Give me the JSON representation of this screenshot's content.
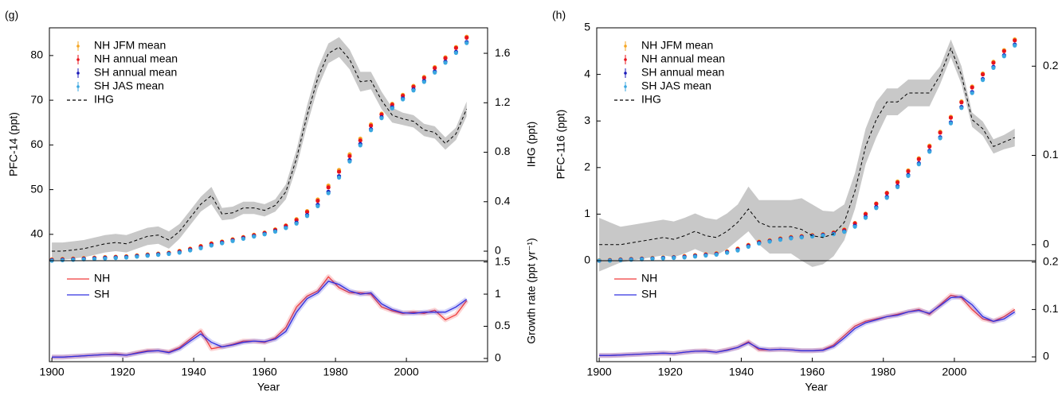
{
  "chart_data": [
    {
      "type": "scatter",
      "title": "(g)",
      "ylabel": "PFC-14 (ppt)",
      "ylabel_color": "#e8141c",
      "y2label": "IHG (ppt)",
      "legend": "upper left",
      "x": [
        1900,
        1903,
        1906,
        1909,
        1912,
        1915,
        1918,
        1921,
        1924,
        1927,
        1930,
        1933,
        1936,
        1939,
        1942,
        1945,
        1948,
        1951,
        1954,
        1957,
        1960,
        1963,
        1966,
        1969,
        1972,
        1975,
        1978,
        1981,
        1984,
        1987,
        1990,
        1993,
        1996,
        1999,
        2002,
        2005,
        2008,
        2011,
        2014,
        2017
      ],
      "xlim": [
        1899.3,
        2022.9
      ],
      "ylim": [
        34.1,
        86.2
      ],
      "yticks": [
        40,
        50,
        60,
        70,
        80
      ],
      "y2lim": [
        -0.077,
        1.806
      ],
      "y2ticks": [
        0,
        0.4,
        0.8,
        1.2,
        1.6
      ],
      "series": [
        {
          "name": "NH JFM mean",
          "color": "#f5a623",
          "marker": "o",
          "values": [
            34.4,
            34.5,
            34.6,
            34.7,
            34.8,
            34.9,
            35.0,
            35.1,
            35.3,
            35.5,
            35.7,
            35.9,
            36.3,
            36.8,
            37.4,
            38.0,
            38.4,
            38.9,
            39.4,
            39.9,
            40.4,
            41.1,
            42.0,
            43.4,
            45.2,
            47.8,
            50.9,
            54.4,
            57.9,
            61.4,
            64.6,
            67.0,
            69.2,
            71.2,
            73.2,
            75.2,
            77.4,
            79.6,
            81.9,
            84.2
          ]
        },
        {
          "name": "NH annual mean",
          "color": "#e8141c",
          "marker": "o",
          "values": [
            34.3,
            34.4,
            34.5,
            34.6,
            34.7,
            34.8,
            34.9,
            35.0,
            35.2,
            35.4,
            35.6,
            35.8,
            36.2,
            36.7,
            37.3,
            37.9,
            38.3,
            38.8,
            39.3,
            39.8,
            40.3,
            41.0,
            41.9,
            43.2,
            45.0,
            47.5,
            50.5,
            54.0,
            57.5,
            61.0,
            64.3,
            66.8,
            69.0,
            71.0,
            73.0,
            75.0,
            77.2,
            79.4,
            81.7,
            84.0
          ]
        },
        {
          "name": "SH annual mean",
          "color": "#1a1ab8",
          "marker": "o",
          "values": [
            34.2,
            34.3,
            34.4,
            34.5,
            34.6,
            34.7,
            34.8,
            34.9,
            35.1,
            35.3,
            35.5,
            35.7,
            36.0,
            36.5,
            37.0,
            37.6,
            38.1,
            38.6,
            39.1,
            39.6,
            40.1,
            40.7,
            41.5,
            42.6,
            44.3,
            46.6,
            49.5,
            53.0,
            56.6,
            60.2,
            63.5,
            66.2,
            68.4,
            70.4,
            72.4,
            74.3,
            76.4,
            78.6,
            80.8,
            83.0
          ]
        },
        {
          "name": "SH JAS mean",
          "color": "#3aa7e0",
          "marker": "o",
          "values": [
            34.1,
            34.2,
            34.3,
            34.4,
            34.5,
            34.6,
            34.7,
            34.8,
            35.0,
            35.2,
            35.4,
            35.6,
            35.9,
            36.4,
            36.9,
            37.5,
            38.0,
            38.5,
            39.0,
            39.5,
            40.0,
            40.6,
            41.4,
            42.4,
            44.1,
            46.3,
            49.2,
            52.7,
            56.3,
            59.9,
            63.3,
            66.0,
            68.2,
            70.2,
            72.2,
            74.1,
            76.2,
            78.4,
            80.6,
            82.8
          ]
        },
        {
          "name": "IHG",
          "color": "#000000",
          "axis": "y2",
          "linestyle": "--",
          "band_color": "#c8c8c8",
          "values": [
            0.0,
            0.0,
            0.01,
            0.02,
            0.04,
            0.06,
            0.07,
            0.06,
            0.09,
            0.12,
            0.13,
            0.09,
            0.16,
            0.27,
            0.38,
            0.45,
            0.3,
            0.31,
            0.35,
            0.35,
            0.33,
            0.37,
            0.48,
            0.75,
            1.1,
            1.4,
            1.6,
            1.65,
            1.55,
            1.37,
            1.38,
            1.22,
            1.1,
            1.07,
            1.05,
            0.98,
            0.96,
            0.87,
            0.95,
            1.15
          ],
          "band": [
            0.07,
            0.07,
            0.07,
            0.07,
            0.07,
            0.07,
            0.07,
            0.07,
            0.07,
            0.07,
            0.07,
            0.07,
            0.06,
            0.06,
            0.06,
            0.07,
            0.05,
            0.05,
            0.05,
            0.05,
            0.05,
            0.05,
            0.06,
            0.07,
            0.08,
            0.08,
            0.08,
            0.08,
            0.08,
            0.08,
            0.07,
            0.07,
            0.06,
            0.05,
            0.05,
            0.05,
            0.05,
            0.05,
            0.05,
            0.06
          ]
        }
      ]
    },
    {
      "type": "line",
      "xlabel": "Year",
      "y2label": "Growth rate (ppt yr⁻¹)",
      "legend": "upper left",
      "x": [
        1900,
        1903,
        1906,
        1909,
        1912,
        1915,
        1918,
        1921,
        1924,
        1927,
        1930,
        1933,
        1936,
        1939,
        1942,
        1945,
        1948,
        1951,
        1954,
        1957,
        1960,
        1963,
        1966,
        1969,
        1972,
        1975,
        1978,
        1981,
        1984,
        1987,
        1990,
        1993,
        1996,
        1999,
        2002,
        2005,
        2008,
        2011,
        2014,
        2017
      ],
      "xlim": [
        1899.3,
        2022.9
      ],
      "xticks": [
        1900,
        1920,
        1940,
        1960,
        1980,
        2000
      ],
      "y2lim": [
        -0.05,
        1.52
      ],
      "y2ticks": [
        0,
        0.5,
        1,
        1.5
      ],
      "series": [
        {
          "name": "NH",
          "color": "#f03a3a",
          "axis": "y2",
          "values": [
            0.02,
            0.02,
            0.03,
            0.04,
            0.05,
            0.06,
            0.07,
            0.05,
            0.09,
            0.12,
            0.12,
            0.1,
            0.17,
            0.3,
            0.43,
            0.15,
            0.18,
            0.22,
            0.27,
            0.27,
            0.25,
            0.32,
            0.48,
            0.8,
            0.97,
            1.05,
            1.27,
            1.1,
            1.02,
            1.02,
            1.0,
            0.8,
            0.74,
            0.7,
            0.72,
            0.7,
            0.75,
            0.6,
            0.68,
            0.9
          ]
        },
        {
          "name": "SH",
          "color": "#3030e0",
          "axis": "y2",
          "values": [
            0.02,
            0.02,
            0.03,
            0.04,
            0.05,
            0.06,
            0.06,
            0.05,
            0.08,
            0.11,
            0.12,
            0.09,
            0.15,
            0.27,
            0.38,
            0.25,
            0.18,
            0.21,
            0.25,
            0.27,
            0.26,
            0.3,
            0.42,
            0.72,
            0.93,
            1.02,
            1.2,
            1.15,
            1.05,
            1.0,
            1.02,
            0.85,
            0.76,
            0.71,
            0.7,
            0.72,
            0.72,
            0.72,
            0.8,
            0.92
          ]
        }
      ]
    },
    {
      "type": "scatter",
      "title": "(h)",
      "ylabel": "PFC-116 (ppt)",
      "ylabel_color": "#e8141c",
      "y2label": "IHG (ppt)",
      "legend": "upper left",
      "x": [
        1900,
        1903,
        1906,
        1909,
        1912,
        1915,
        1918,
        1921,
        1924,
        1927,
        1930,
        1933,
        1936,
        1939,
        1942,
        1945,
        1948,
        1951,
        1954,
        1957,
        1960,
        1963,
        1966,
        1969,
        1972,
        1975,
        1978,
        1981,
        1984,
        1987,
        1990,
        1993,
        1996,
        1999,
        2002,
        2005,
        2008,
        2011,
        2014,
        2017
      ],
      "xlim": [
        1899.3,
        2022.9
      ],
      "ylim": [
        0,
        5
      ],
      "yticks": [
        0,
        1,
        2,
        3,
        4,
        5
      ],
      "y2lim": [
        -0.018,
        0.243
      ],
      "y2ticks": [
        0,
        0.1,
        0.2
      ],
      "series": [
        {
          "name": "NH JFM mean",
          "color": "#f5a623",
          "marker": "o",
          "values": [
            0.01,
            0.02,
            0.03,
            0.04,
            0.05,
            0.06,
            0.07,
            0.08,
            0.1,
            0.12,
            0.14,
            0.16,
            0.2,
            0.26,
            0.34,
            0.41,
            0.44,
            0.48,
            0.51,
            0.53,
            0.55,
            0.57,
            0.61,
            0.67,
            0.81,
            1.01,
            1.23,
            1.46,
            1.7,
            1.94,
            2.2,
            2.47,
            2.77,
            3.09,
            3.42,
            3.74,
            4.02,
            4.27,
            4.52,
            4.75
          ]
        },
        {
          "name": "NH annual mean",
          "color": "#e8141c",
          "marker": "o",
          "values": [
            0.0,
            0.01,
            0.02,
            0.03,
            0.04,
            0.05,
            0.06,
            0.07,
            0.09,
            0.11,
            0.13,
            0.15,
            0.19,
            0.25,
            0.33,
            0.4,
            0.43,
            0.47,
            0.5,
            0.52,
            0.54,
            0.56,
            0.6,
            0.66,
            0.8,
            1.0,
            1.22,
            1.45,
            1.68,
            1.92,
            2.18,
            2.45,
            2.75,
            3.07,
            3.4,
            3.72,
            4.0,
            4.25,
            4.5,
            4.73
          ]
        },
        {
          "name": "SH annual mean",
          "color": "#1a1ab8",
          "marker": "o",
          "values": [
            0.0,
            0.01,
            0.02,
            0.03,
            0.04,
            0.05,
            0.06,
            0.07,
            0.08,
            0.1,
            0.12,
            0.14,
            0.18,
            0.23,
            0.31,
            0.38,
            0.42,
            0.46,
            0.49,
            0.51,
            0.53,
            0.55,
            0.58,
            0.63,
            0.75,
            0.94,
            1.15,
            1.37,
            1.6,
            1.84,
            2.09,
            2.36,
            2.65,
            2.97,
            3.3,
            3.62,
            3.9,
            4.16,
            4.41,
            4.64
          ]
        },
        {
          "name": "SH JAS mean",
          "color": "#3aa7e0",
          "marker": "o",
          "values": [
            0.0,
            0.0,
            0.01,
            0.02,
            0.03,
            0.04,
            0.05,
            0.06,
            0.07,
            0.09,
            0.11,
            0.13,
            0.17,
            0.22,
            0.3,
            0.37,
            0.41,
            0.45,
            0.48,
            0.5,
            0.52,
            0.54,
            0.57,
            0.62,
            0.73,
            0.92,
            1.13,
            1.35,
            1.58,
            1.82,
            2.07,
            2.34,
            2.63,
            2.95,
            3.28,
            3.6,
            3.88,
            4.14,
            4.39,
            4.62
          ]
        },
        {
          "name": "IHG",
          "color": "#000000",
          "axis": "y2",
          "linestyle": "--",
          "band_color": "#c8c8c8",
          "values": [
            0.0,
            0.0,
            0.0,
            0.002,
            0.004,
            0.006,
            0.008,
            0.006,
            0.01,
            0.015,
            0.01,
            0.008,
            0.015,
            0.025,
            0.04,
            0.025,
            0.02,
            0.02,
            0.02,
            0.017,
            0.01,
            0.008,
            0.012,
            0.025,
            0.06,
            0.11,
            0.14,
            0.16,
            0.16,
            0.17,
            0.17,
            0.17,
            0.19,
            0.22,
            0.19,
            0.14,
            0.13,
            0.11,
            0.115,
            0.12
          ],
          "band": [
            0.03,
            0.025,
            0.02,
            0.02,
            0.02,
            0.02,
            0.02,
            0.02,
            0.02,
            0.02,
            0.02,
            0.02,
            0.02,
            0.02,
            0.025,
            0.025,
            0.03,
            0.03,
            0.03,
            0.035,
            0.035,
            0.03,
            0.025,
            0.02,
            0.02,
            0.02,
            0.02,
            0.015,
            0.015,
            0.015,
            0.015,
            0.015,
            0.01,
            0.01,
            0.01,
            0.008,
            0.008,
            0.008,
            0.008,
            0.01
          ]
        }
      ]
    },
    {
      "type": "line",
      "xlabel": "Year",
      "y2label": "Growth rate (ppt yr⁻¹)",
      "legend": "upper left",
      "x": [
        1900,
        1903,
        1906,
        1909,
        1912,
        1915,
        1918,
        1921,
        1924,
        1927,
        1930,
        1933,
        1936,
        1939,
        1942,
        1945,
        1948,
        1951,
        1954,
        1957,
        1960,
        1963,
        1966,
        1969,
        1972,
        1975,
        1978,
        1981,
        1984,
        1987,
        1990,
        1993,
        1996,
        1999,
        2002,
        2005,
        2008,
        2011,
        2014,
        2017
      ],
      "xlim": [
        1899.3,
        2022.9
      ],
      "xticks": [
        1900,
        1920,
        1940,
        1960,
        1980,
        2000
      ],
      "y2lim": [
        -0.01,
        0.203
      ],
      "y2ticks": [
        0,
        0.1,
        0.2
      ],
      "series": [
        {
          "name": "NH",
          "color": "#f03a3a",
          "axis": "y2",
          "values": [
            0.003,
            0.003,
            0.004,
            0.005,
            0.006,
            0.007,
            0.008,
            0.007,
            0.01,
            0.012,
            0.013,
            0.01,
            0.015,
            0.02,
            0.032,
            0.015,
            0.015,
            0.016,
            0.015,
            0.013,
            0.013,
            0.015,
            0.025,
            0.045,
            0.065,
            0.075,
            0.08,
            0.085,
            0.09,
            0.095,
            0.1,
            0.09,
            0.11,
            0.13,
            0.125,
            0.1,
            0.08,
            0.075,
            0.085,
            0.1
          ]
        },
        {
          "name": "SH",
          "color": "#3030e0",
          "axis": "y2",
          "values": [
            0.003,
            0.003,
            0.004,
            0.005,
            0.006,
            0.007,
            0.008,
            0.007,
            0.01,
            0.012,
            0.012,
            0.01,
            0.014,
            0.02,
            0.03,
            0.018,
            0.015,
            0.016,
            0.015,
            0.013,
            0.013,
            0.014,
            0.022,
            0.04,
            0.06,
            0.072,
            0.078,
            0.085,
            0.088,
            0.095,
            0.098,
            0.092,
            0.108,
            0.125,
            0.127,
            0.11,
            0.085,
            0.075,
            0.08,
            0.095
          ]
        }
      ]
    }
  ]
}
